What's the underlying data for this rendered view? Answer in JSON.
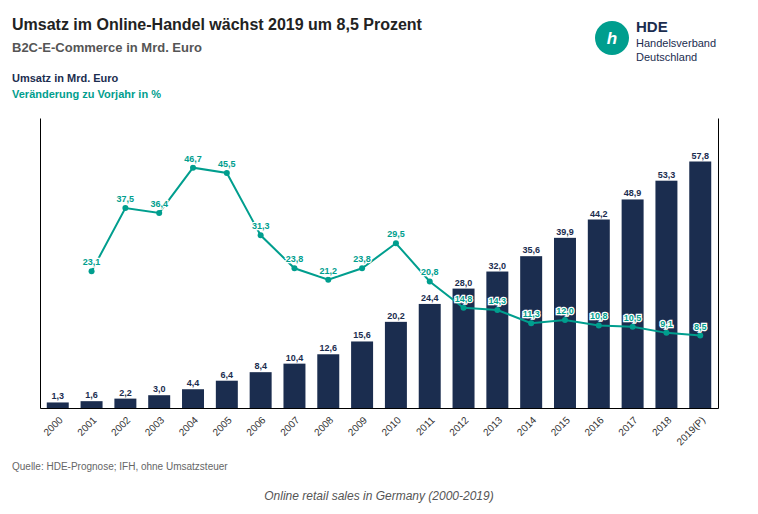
{
  "chart_data": {
    "type": "bar",
    "title": "Umsatz im Online-Handel wächst 2019 um 8,5 Prozent",
    "subtitle": "B2C-E-Commerce in Mrd. Euro",
    "ylabel": "Umsatz in Mrd. Euro",
    "y2label": "Veränderung zu Vorjahr in %",
    "annotations": [
      "Quelle: HDE-Prognose;  IFH, ohne Umsatzsteuer",
      "Online retail sales in Germany (2000-2019)",
      "HDE",
      "Handelsverband",
      "Deutschland",
      "h"
    ],
    "categories": [
      "2000",
      "2001",
      "2002",
      "2003",
      "2004",
      "2005",
      "2006",
      "2007",
      "2008",
      "2009",
      "2010",
      "2011",
      "2012",
      "2013",
      "2014",
      "2015",
      "2016",
      "2017",
      "2018",
      "2019(P)"
    ],
    "series": [
      {
        "type": "bar",
        "color": "#1b2d4f",
        "values": [
          1.3,
          1.6,
          2.2,
          3.0,
          4.4,
          6.4,
          8.4,
          10.4,
          12.6,
          15.6,
          20.2,
          24.4,
          28.0,
          32.0,
          35.6,
          39.9,
          44.2,
          48.9,
          53.3,
          57.8
        ],
        "value_labels": [
          "1,3",
          "1,6",
          "2,2",
          "3,0",
          "4,4",
          "6,4",
          "8,4",
          "10,4",
          "12,6",
          "15,6",
          "20,2",
          "24,4",
          "28,0",
          "32,0",
          "35,6",
          "39,9",
          "44,2",
          "48,9",
          "53,3",
          "57,8"
        ]
      },
      {
        "type": "line",
        "axis": "y2",
        "color": "#009e8e",
        "marker": "circle",
        "values": [
          null,
          23.1,
          37.5,
          36.4,
          46.7,
          45.5,
          31.3,
          23.8,
          21.2,
          23.8,
          29.5,
          20.8,
          14.8,
          14.3,
          11.3,
          12.0,
          10.8,
          10.5,
          9.1,
          8.5
        ],
        "value_labels": [
          null,
          "23,1",
          "37,5",
          "36,4",
          "46,7",
          "45,5",
          "31,3",
          "23,8",
          "21,2",
          "23,8",
          "29,5",
          "20,8",
          "14,8",
          "14,3",
          "11,3",
          "12,0",
          "10,8",
          "10,5",
          "9,1",
          "8,5"
        ]
      }
    ],
    "ylim": [
      0,
      68
    ],
    "yticks": [],
    "y2lim": [
      -8,
      58
    ],
    "y2ticks": [],
    "tick_labels": "x",
    "grid": false,
    "data_labels": true
  }
}
